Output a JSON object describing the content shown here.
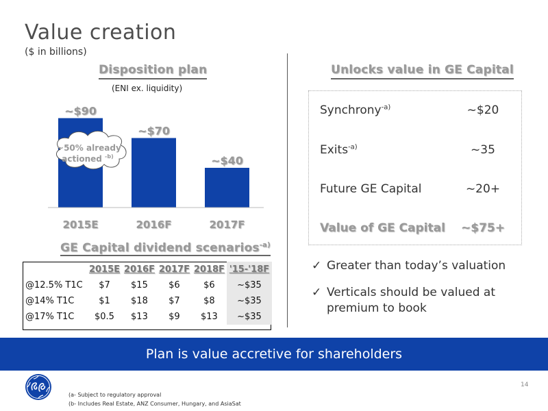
{
  "title": "Value creation",
  "subtitle": "($ in billions)",
  "disposition": {
    "title": "Disposition plan",
    "subtitle": "(ENI ex. liquidity)",
    "callout": "~50% already actioned",
    "callout_sup": "-b)"
  },
  "chart_data": {
    "type": "bar",
    "categories": [
      "2015E",
      "2016F",
      "2017F"
    ],
    "values": [
      90,
      70,
      40
    ],
    "labels": [
      "~$90",
      "~$70",
      "~$40"
    ],
    "color": "#0f42a8"
  },
  "unlocks": {
    "title": "Unlocks value in GE Capital",
    "rows": [
      {
        "label": "Synchrony",
        "sup": "-a)",
        "value": "~$20"
      },
      {
        "label": "Exits",
        "sup": "-a)",
        "value": "~35"
      },
      {
        "label": "Future GE Capital",
        "sup": "",
        "value": "~20+"
      }
    ],
    "total": {
      "label": "Value of GE Capital",
      "value": "~$75+"
    }
  },
  "dividend": {
    "title": "GE Capital dividend scenarios",
    "title_sup": "-a)",
    "headers": [
      "",
      "2015E",
      "2016F",
      "2017F",
      "2018F",
      "'15-'18F"
    ],
    "rows": [
      [
        "@12.5% T1C",
        "$7",
        "$15",
        "$6",
        "$6",
        "~$35"
      ],
      [
        "@14% T1C",
        "$1",
        "$18",
        "$7",
        "$8",
        "~$35"
      ],
      [
        "@17% T1C",
        "$0.5",
        "$13",
        "$9",
        "$13",
        "~$35"
      ]
    ]
  },
  "checks": {
    "item1": "Greater than today’s valuation",
    "item2_line1": "Verticals should be valued at",
    "item2_line2": "premium to book"
  },
  "banner": "Plan is value accretive for shareholders",
  "page_number": "14",
  "footnotes": {
    "a": "(a- Subject to regulatory approval",
    "b": "(b- Includes Real Estate, ANZ Consumer, Hungary, and AsiaSat"
  },
  "colors": {
    "brand_blue": "#0f42a8"
  }
}
